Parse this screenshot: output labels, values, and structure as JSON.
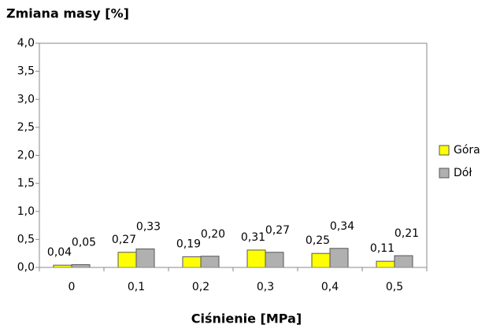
{
  "chart_data": {
    "type": "bar",
    "y_label": "Zmiana masy [%]",
    "x_label": "Ciśnienie [MPa]",
    "categories": [
      "0",
      "0,1",
      "0,2",
      "0,3",
      "0,4",
      "0,5"
    ],
    "series": [
      {
        "name": "Góra",
        "color": "#ffff00",
        "values": [
          0.04,
          0.27,
          0.19,
          0.31,
          0.25,
          0.11
        ],
        "value_labels": [
          "0,04",
          "0,27",
          "0,19",
          "0,31",
          "0,25",
          "0,11"
        ]
      },
      {
        "name": "Dół",
        "color": "#b0b0b0",
        "values": [
          0.05,
          0.33,
          0.2,
          0.27,
          0.34,
          0.21
        ],
        "value_labels": [
          "0,05",
          "0,33",
          "0,20",
          "0,27",
          "0,34",
          "0,21"
        ]
      }
    ],
    "ylim": [
      0,
      4
    ],
    "yticks": [
      {
        "value": 0,
        "label": "0,0"
      },
      {
        "value": 0.5,
        "label": "0,5"
      },
      {
        "value": 1,
        "label": "1,0"
      },
      {
        "value": 1.5,
        "label": "1,5"
      },
      {
        "value": 2,
        "label": "2,0"
      },
      {
        "value": 2.5,
        "label": "2,5"
      },
      {
        "value": 3,
        "label": "3,0"
      },
      {
        "value": 3.5,
        "label": "3,5"
      },
      {
        "value": 4,
        "label": "4,0"
      }
    ],
    "legend": "right"
  }
}
